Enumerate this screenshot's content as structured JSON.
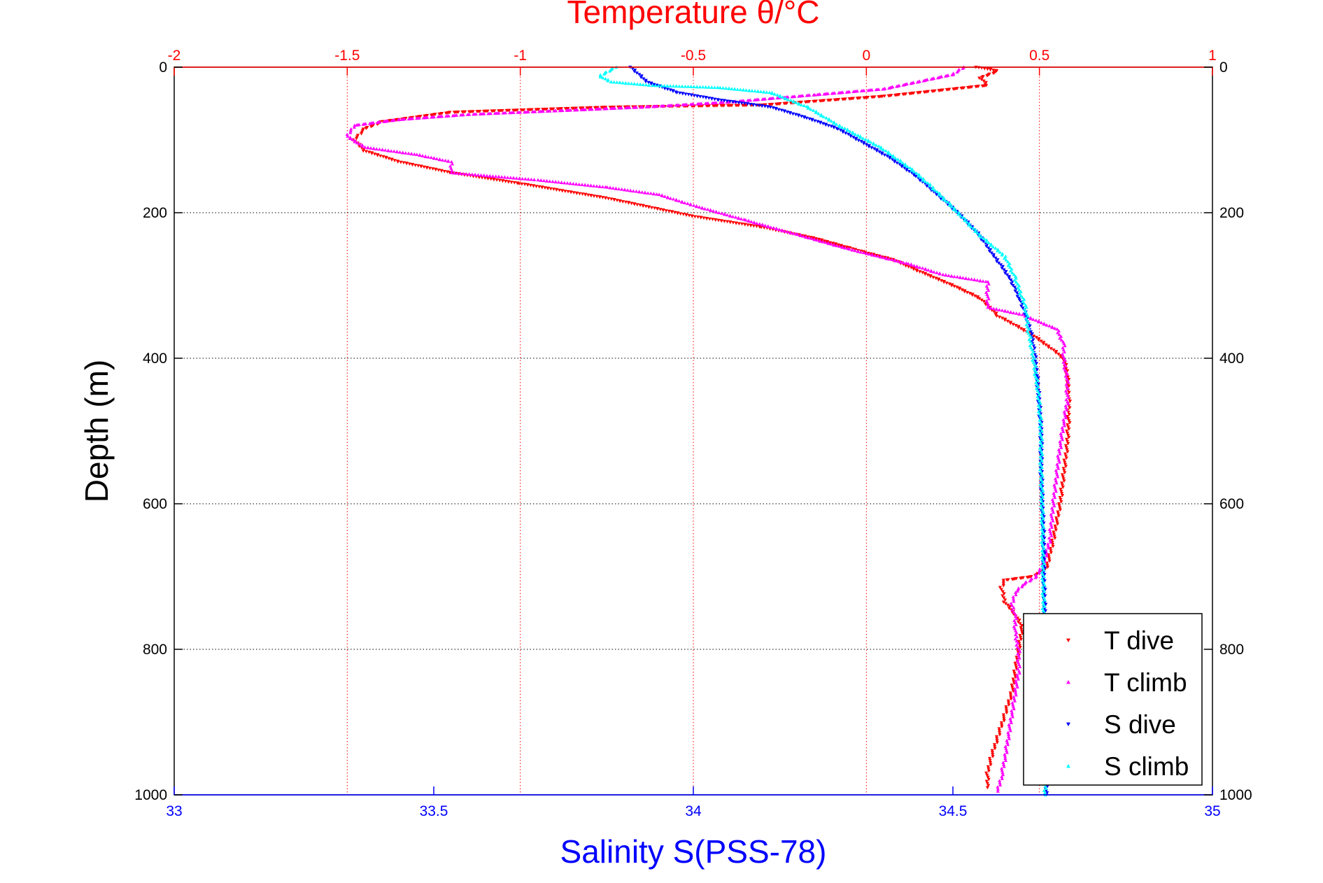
{
  "chart_data": {
    "type": "scatter",
    "title": "Temperature θ/°C",
    "xlabel": "Salinity S(PSS-78)",
    "ylabel": "Depth (m)",
    "x_temperature": {
      "label": "Temperature θ/°C",
      "lim": [
        -2,
        1
      ],
      "ticks": [
        -2,
        -1.5,
        -1,
        -0.5,
        0,
        0.5,
        1
      ],
      "tick_labels": [
        "-2",
        "-1.5",
        "-1",
        "-0.5",
        "0",
        "0.5",
        "1"
      ],
      "color": "#ff0000"
    },
    "x_salinity": {
      "label": "Salinity S(PSS-78)",
      "lim": [
        33,
        35
      ],
      "ticks": [
        33,
        33.5,
        34,
        34.5,
        35
      ],
      "tick_labels": [
        "33",
        "33.5",
        "34",
        "34.5",
        "35"
      ],
      "color": "#0000ff"
    },
    "y_depth": {
      "label": "Depth (m)",
      "lim": [
        0,
        1000
      ],
      "reversed": true,
      "ticks": [
        0,
        200,
        400,
        600,
        800,
        1000
      ],
      "tick_labels": [
        "0",
        "200",
        "400",
        "600",
        "800",
        "1000"
      ]
    },
    "grid": true,
    "legend_position": "bottom-right",
    "series": [
      {
        "name": "T dive",
        "axis": "temperature",
        "color": "#ff0000",
        "marker": "triangle-down",
        "points": [
          [
            0.32,
            0
          ],
          [
            0.38,
            5
          ],
          [
            0.33,
            15
          ],
          [
            0.35,
            25
          ],
          [
            0.05,
            40
          ],
          [
            -0.3,
            52
          ],
          [
            -0.75,
            55
          ],
          [
            -1.2,
            62
          ],
          [
            -1.4,
            75
          ],
          [
            -1.45,
            85
          ],
          [
            -1.48,
            100
          ],
          [
            -1.45,
            115
          ],
          [
            -1.35,
            130
          ],
          [
            -1.2,
            145
          ],
          [
            -1.0,
            160
          ],
          [
            -0.75,
            180
          ],
          [
            -0.5,
            205
          ],
          [
            -0.3,
            220
          ],
          [
            -0.15,
            235
          ],
          [
            0.0,
            255
          ],
          [
            0.08,
            265
          ],
          [
            0.15,
            280
          ],
          [
            0.25,
            300
          ],
          [
            0.33,
            318
          ],
          [
            0.36,
            332
          ],
          [
            0.38,
            342
          ],
          [
            0.42,
            352
          ],
          [
            0.48,
            368
          ],
          [
            0.53,
            385
          ],
          [
            0.57,
            400
          ],
          [
            0.58,
            420
          ],
          [
            0.585,
            450
          ],
          [
            0.585,
            480
          ],
          [
            0.58,
            520
          ],
          [
            0.57,
            560
          ],
          [
            0.56,
            600
          ],
          [
            0.54,
            650
          ],
          [
            0.52,
            690
          ],
          [
            0.48,
            700
          ],
          [
            0.4,
            705
          ],
          [
            0.39,
            715
          ],
          [
            0.4,
            735
          ],
          [
            0.43,
            752
          ],
          [
            0.45,
            770
          ],
          [
            0.44,
            800
          ],
          [
            0.43,
            830
          ],
          [
            0.42,
            860
          ],
          [
            0.4,
            890
          ],
          [
            0.38,
            920
          ],
          [
            0.36,
            950
          ],
          [
            0.35,
            970
          ],
          [
            0.35,
            990
          ]
        ]
      },
      {
        "name": "T climb",
        "axis": "temperature",
        "color": "#ff00ff",
        "marker": "triangle-up",
        "points": [
          [
            0.28,
            0
          ],
          [
            0.25,
            10
          ],
          [
            0.15,
            20
          ],
          [
            0.05,
            30
          ],
          [
            -0.15,
            38
          ],
          [
            -0.4,
            48
          ],
          [
            -0.65,
            55
          ],
          [
            -0.9,
            60
          ],
          [
            -1.15,
            65
          ],
          [
            -1.35,
            72
          ],
          [
            -1.48,
            80
          ],
          [
            -1.5,
            95
          ],
          [
            -1.45,
            110
          ],
          [
            -1.3,
            120
          ],
          [
            -1.2,
            130
          ],
          [
            -1.2,
            145
          ],
          [
            -0.95,
            155
          ],
          [
            -0.75,
            165
          ],
          [
            -0.6,
            175
          ],
          [
            -0.5,
            190
          ],
          [
            -0.35,
            210
          ],
          [
            -0.2,
            230
          ],
          [
            -0.05,
            250
          ],
          [
            0.12,
            270
          ],
          [
            0.22,
            285
          ],
          [
            0.35,
            295
          ],
          [
            0.35,
            330
          ],
          [
            0.45,
            340
          ],
          [
            0.55,
            360
          ],
          [
            0.57,
            380
          ],
          [
            0.57,
            400
          ],
          [
            0.58,
            430
          ],
          [
            0.58,
            460
          ],
          [
            0.57,
            490
          ],
          [
            0.56,
            520
          ],
          [
            0.55,
            560
          ],
          [
            0.54,
            600
          ],
          [
            0.53,
            650
          ],
          [
            0.51,
            685
          ],
          [
            0.49,
            700
          ],
          [
            0.45,
            712
          ],
          [
            0.43,
            722
          ],
          [
            0.42,
            740
          ],
          [
            0.43,
            755
          ],
          [
            0.43,
            780
          ],
          [
            0.44,
            800
          ],
          [
            0.44,
            830
          ],
          [
            0.43,
            860
          ],
          [
            0.42,
            890
          ],
          [
            0.41,
            920
          ],
          [
            0.4,
            950
          ],
          [
            0.39,
            975
          ],
          [
            0.38,
            995
          ]
        ]
      },
      {
        "name": "S dive",
        "axis": "salinity",
        "color": "#0000ff",
        "marker": "triangle-down",
        "points": [
          [
            33.88,
            0
          ],
          [
            33.91,
            20
          ],
          [
            33.97,
            35
          ],
          [
            34.05,
            45
          ],
          [
            34.15,
            55
          ],
          [
            34.22,
            70
          ],
          [
            34.28,
            85
          ],
          [
            34.33,
            105
          ],
          [
            34.38,
            125
          ],
          [
            34.43,
            150
          ],
          [
            34.47,
            175
          ],
          [
            34.51,
            200
          ],
          [
            34.55,
            230
          ],
          [
            34.58,
            260
          ],
          [
            34.61,
            290
          ],
          [
            34.63,
            320
          ],
          [
            34.645,
            350
          ],
          [
            34.655,
            380
          ],
          [
            34.66,
            410
          ],
          [
            34.665,
            450
          ],
          [
            34.67,
            500
          ],
          [
            34.67,
            550
          ],
          [
            34.672,
            600
          ],
          [
            34.675,
            650
          ],
          [
            34.675,
            700
          ],
          [
            34.677,
            750
          ],
          [
            34.677,
            800
          ],
          [
            34.678,
            850
          ],
          [
            34.678,
            900
          ],
          [
            34.679,
            950
          ],
          [
            34.68,
            1000
          ]
        ]
      },
      {
        "name": "S climb",
        "axis": "salinity",
        "color": "#00ffff",
        "marker": "triangle-up",
        "points": [
          [
            33.85,
            0
          ],
          [
            33.82,
            12
          ],
          [
            33.84,
            20
          ],
          [
            33.92,
            25
          ],
          [
            34.05,
            28
          ],
          [
            34.15,
            35
          ],
          [
            34.22,
            55
          ],
          [
            34.28,
            80
          ],
          [
            34.32,
            95
          ],
          [
            34.36,
            110
          ],
          [
            34.42,
            140
          ],
          [
            34.46,
            165
          ],
          [
            34.51,
            200
          ],
          [
            34.55,
            230
          ],
          [
            34.6,
            260
          ],
          [
            34.62,
            290
          ],
          [
            34.64,
            330
          ],
          [
            34.645,
            360
          ],
          [
            34.655,
            400
          ],
          [
            34.665,
            450
          ],
          [
            34.67,
            500
          ],
          [
            34.67,
            550
          ],
          [
            34.672,
            600
          ],
          [
            34.673,
            650
          ],
          [
            34.674,
            700
          ],
          [
            34.675,
            750
          ],
          [
            34.676,
            800
          ],
          [
            34.677,
            850
          ],
          [
            34.677,
            900
          ],
          [
            34.678,
            950
          ],
          [
            34.678,
            1000
          ]
        ]
      }
    ]
  }
}
